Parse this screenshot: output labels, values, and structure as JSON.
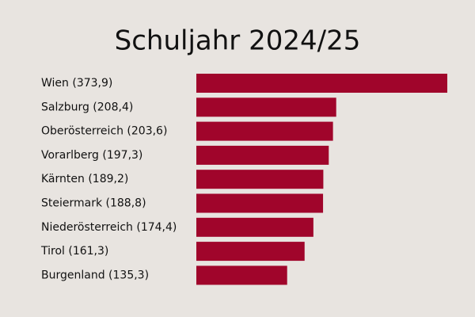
{
  "chart_data": {
    "type": "bar",
    "orientation": "horizontal",
    "title": "Schuljahr 2024/25",
    "categories": [
      "Wien (373,9)",
      "Salzburg (208,4)",
      "Oberösterreich (203,6)",
      "Vorarlberg (197,3)",
      "Kärnten (189,2)",
      "Steiermark (188,8)",
      "Niederösterreich (174,4)",
      "Tirol (161,3)",
      "Burgenland (135,3)"
    ],
    "values": [
      373.9,
      208.4,
      203.6,
      197.3,
      189.2,
      188.8,
      174.4,
      161.3,
      135.3
    ],
    "color": "#a0052b"
  }
}
